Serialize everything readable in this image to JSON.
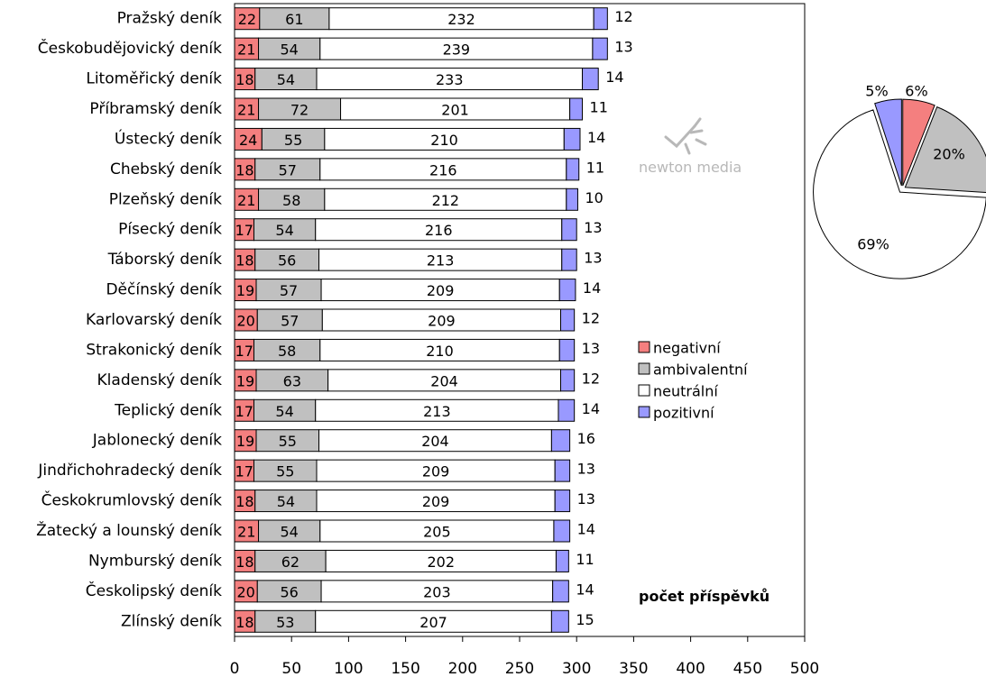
{
  "logo": {
    "name": "newton-media-logo",
    "text": "newton media",
    "color": "#b8b8b8"
  },
  "chart_data": [
    {
      "type": "bar",
      "orientation": "horizontal",
      "stacked": true,
      "title": "",
      "xlabel": "",
      "ylabel": "",
      "xlim": [
        0,
        500
      ],
      "xticks": [
        0,
        50,
        100,
        150,
        200,
        250,
        300,
        350,
        400,
        450,
        500
      ],
      "grid": false,
      "legend_position": "right",
      "annotation": "počet příspěvků",
      "categories": [
        "Pražský deník",
        "Českobudějovický deník",
        "Litoměřický deník",
        "Příbramský deník",
        "Ústecký deník",
        "Chebský deník",
        "Plzeňský deník",
        "Písecký deník",
        "Táborský deník",
        "Děčínský deník",
        "Karlovarský deník",
        "Strakonický deník",
        "Kladenský deník",
        "Teplický deník",
        "Jablonecký deník",
        "Jindřichohradecký deník",
        "Českokrumlovský deník",
        "Žatecký a lounský deník",
        "Nymburský deník",
        "Českolipský deník",
        "Zlínský deník"
      ],
      "series": [
        {
          "name": "negativní",
          "color": "#f47f7f",
          "values": [
            22,
            21,
            18,
            21,
            24,
            18,
            21,
            17,
            18,
            19,
            20,
            17,
            19,
            17,
            19,
            17,
            18,
            21,
            18,
            20,
            18
          ]
        },
        {
          "name": "ambivalentní",
          "color": "#c0c0c0",
          "values": [
            61,
            54,
            54,
            72,
            55,
            57,
            58,
            54,
            56,
            57,
            57,
            58,
            63,
            54,
            55,
            55,
            54,
            54,
            62,
            56,
            53
          ]
        },
        {
          "name": "neutrální",
          "color": "#ffffff",
          "values": [
            232,
            239,
            233,
            201,
            210,
            216,
            212,
            216,
            213,
            209,
            209,
            210,
            204,
            213,
            204,
            209,
            209,
            205,
            202,
            203,
            207
          ]
        },
        {
          "name": "pozitivní",
          "color": "#9999ff",
          "values": [
            12,
            13,
            14,
            11,
            14,
            11,
            10,
            13,
            13,
            14,
            12,
            13,
            12,
            14,
            16,
            13,
            13,
            14,
            11,
            14,
            15
          ]
        }
      ]
    },
    {
      "type": "pie",
      "title": "",
      "slices": [
        {
          "name": "negativní",
          "value": 6,
          "label": "6%",
          "color": "#f47f7f"
        },
        {
          "name": "ambivalentní",
          "value": 20,
          "label": "20%",
          "color": "#c0c0c0"
        },
        {
          "name": "neutrální",
          "value": 69,
          "label": "69%",
          "color": "#ffffff"
        },
        {
          "name": "pozitivní",
          "value": 5,
          "label": "5%",
          "color": "#9999ff"
        }
      ]
    }
  ]
}
